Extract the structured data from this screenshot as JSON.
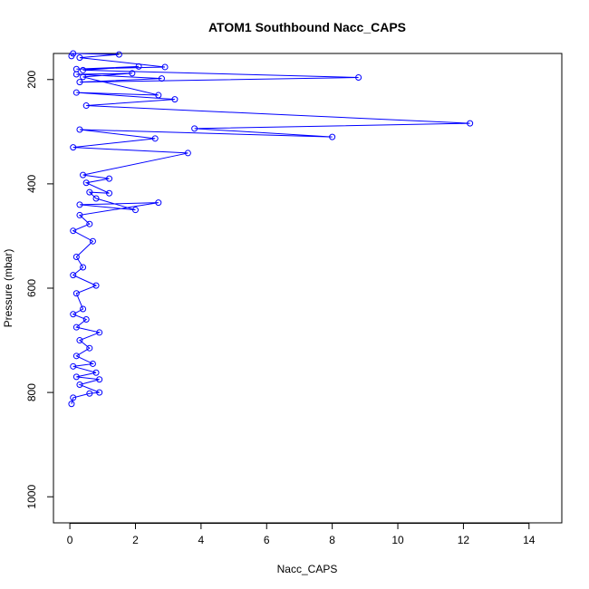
{
  "chart_data": {
    "type": "line",
    "title": "ATOM1 Southbound Nacc_CAPS",
    "xlabel": "Nacc_CAPS",
    "ylabel": "Pressure (mbar)",
    "xlim": [
      -0.5,
      15
    ],
    "ylim": [
      1050,
      150
    ],
    "y_reversed": true,
    "x_ticks": [
      0,
      2,
      4,
      6,
      8,
      10,
      12,
      14
    ],
    "y_ticks": [
      200,
      400,
      600,
      800,
      1000
    ],
    "grid": false,
    "legend": "none",
    "series_color": "#0000ff",
    "series": [
      {
        "values": [
          {
            "x": 0.05,
            "y": 155
          },
          {
            "x": 0.1,
            "y": 150
          },
          {
            "x": 1.5,
            "y": 152
          },
          {
            "x": 0.3,
            "y": 158
          },
          {
            "x": 2.9,
            "y": 176
          },
          {
            "x": 0.2,
            "y": 180
          },
          {
            "x": 2.1,
            "y": 175
          },
          {
            "x": 0.4,
            "y": 182
          },
          {
            "x": 8.8,
            "y": 196
          },
          {
            "x": 0.3,
            "y": 205
          },
          {
            "x": 2.8,
            "y": 198
          },
          {
            "x": 0.2,
            "y": 190
          },
          {
            "x": 1.9,
            "y": 188
          },
          {
            "x": 0.4,
            "y": 195
          },
          {
            "x": 2.7,
            "y": 230
          },
          {
            "x": 0.2,
            "y": 225
          },
          {
            "x": 3.2,
            "y": 238
          },
          {
            "x": 0.5,
            "y": 250
          },
          {
            "x": 12.2,
            "y": 284
          },
          {
            "x": 3.8,
            "y": 294
          },
          {
            "x": 8.0,
            "y": 310
          },
          {
            "x": 0.3,
            "y": 296
          },
          {
            "x": 2.6,
            "y": 313
          },
          {
            "x": 0.1,
            "y": 330
          },
          {
            "x": 3.6,
            "y": 341
          },
          {
            "x": 0.4,
            "y": 383
          },
          {
            "x": 1.2,
            "y": 390
          },
          {
            "x": 0.5,
            "y": 398
          },
          {
            "x": 1.2,
            "y": 418
          },
          {
            "x": 0.6,
            "y": 416
          },
          {
            "x": 0.8,
            "y": 428
          },
          {
            "x": 2.0,
            "y": 450
          },
          {
            "x": 0.3,
            "y": 440
          },
          {
            "x": 2.7,
            "y": 436
          },
          {
            "x": 0.3,
            "y": 460
          },
          {
            "x": 0.6,
            "y": 477
          },
          {
            "x": 0.1,
            "y": 490
          },
          {
            "x": 0.7,
            "y": 510
          },
          {
            "x": 0.2,
            "y": 540
          },
          {
            "x": 0.4,
            "y": 560
          },
          {
            "x": 0.1,
            "y": 575
          },
          {
            "x": 0.8,
            "y": 595
          },
          {
            "x": 0.2,
            "y": 610
          },
          {
            "x": 0.4,
            "y": 640
          },
          {
            "x": 0.1,
            "y": 650
          },
          {
            "x": 0.5,
            "y": 660
          },
          {
            "x": 0.2,
            "y": 675
          },
          {
            "x": 0.9,
            "y": 685
          },
          {
            "x": 0.3,
            "y": 700
          },
          {
            "x": 0.6,
            "y": 715
          },
          {
            "x": 0.2,
            "y": 730
          },
          {
            "x": 0.7,
            "y": 745
          },
          {
            "x": 0.1,
            "y": 750
          },
          {
            "x": 0.8,
            "y": 762
          },
          {
            "x": 0.2,
            "y": 770
          },
          {
            "x": 0.9,
            "y": 775
          },
          {
            "x": 0.3,
            "y": 785
          },
          {
            "x": 0.9,
            "y": 800
          },
          {
            "x": 0.6,
            "y": 802
          },
          {
            "x": 0.1,
            "y": 810
          },
          {
            "x": 0.05,
            "y": 822
          }
        ]
      }
    ]
  }
}
